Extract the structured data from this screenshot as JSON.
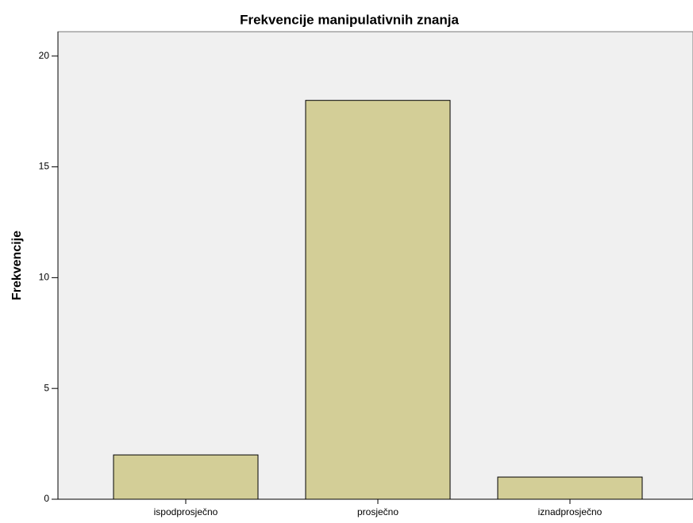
{
  "chart_data": {
    "type": "bar",
    "title": "Frekvencije manipulativnih znanja",
    "ylabel": "Frekvencije",
    "categories": [
      "ispodprosječno",
      "prosječno",
      "iznadprosječno"
    ],
    "values": [
      2,
      18,
      1
    ],
    "color": "#d3ce97",
    "ylim": [
      0,
      21.1
    ],
    "yticks": [
      0,
      5,
      10,
      15,
      20
    ],
    "grid": false
  }
}
